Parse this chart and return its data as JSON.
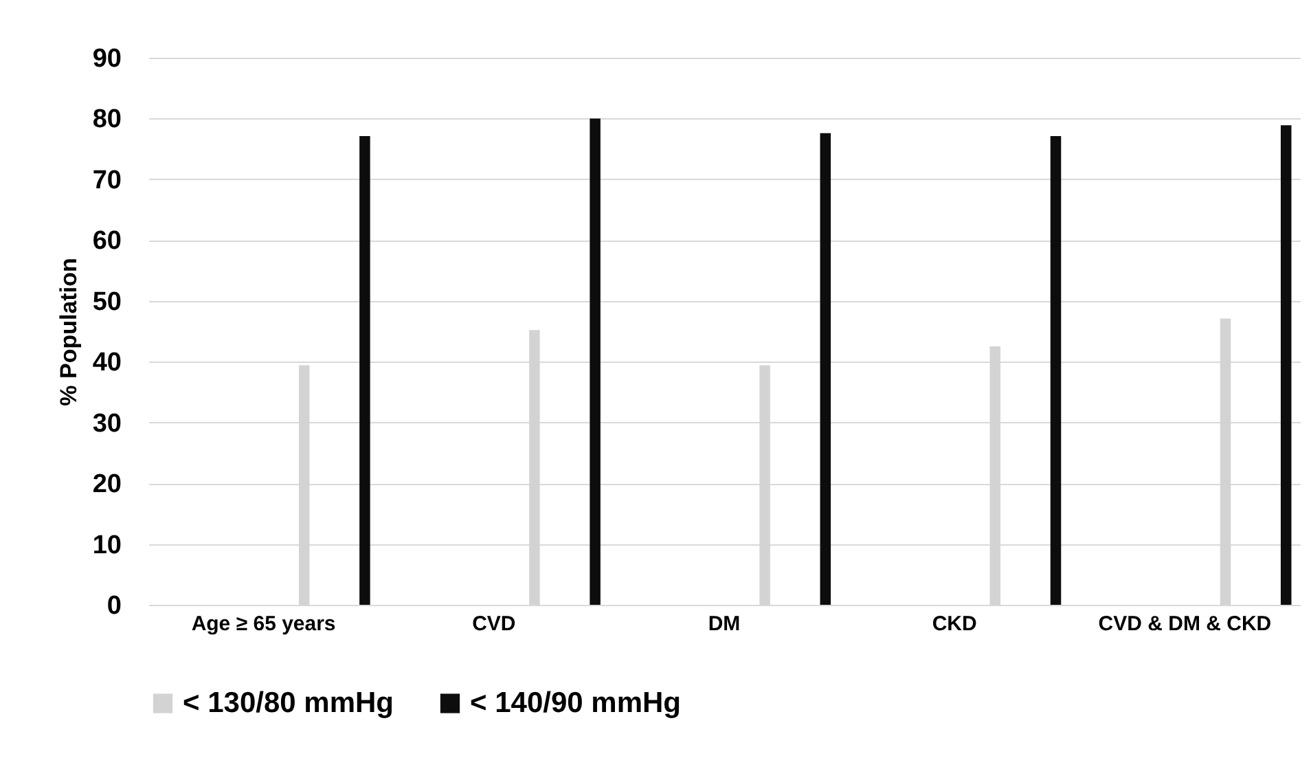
{
  "chart_data": {
    "type": "bar",
    "ylabel": "% Population",
    "categories": [
      "Age ≥ 65 years",
      "CVD",
      "DM",
      "CKD",
      "CVD & DM & CKD"
    ],
    "series": [
      {
        "name": "< 130/80 mmHg",
        "color": "#d3d3d3",
        "values": [
          39.4,
          45.2,
          39.4,
          42.5,
          47.1
        ]
      },
      {
        "name": "< 140/90 mmHg",
        "color": "#0d0d0d",
        "values": [
          77.1,
          80,
          77.6,
          77.1,
          78.9
        ]
      }
    ],
    "ylim": [
      0,
      90
    ],
    "yticks": [
      0,
      10,
      20,
      30,
      40,
      50,
      60,
      70,
      80,
      90
    ],
    "grid": "y",
    "legend": "bottom"
  }
}
